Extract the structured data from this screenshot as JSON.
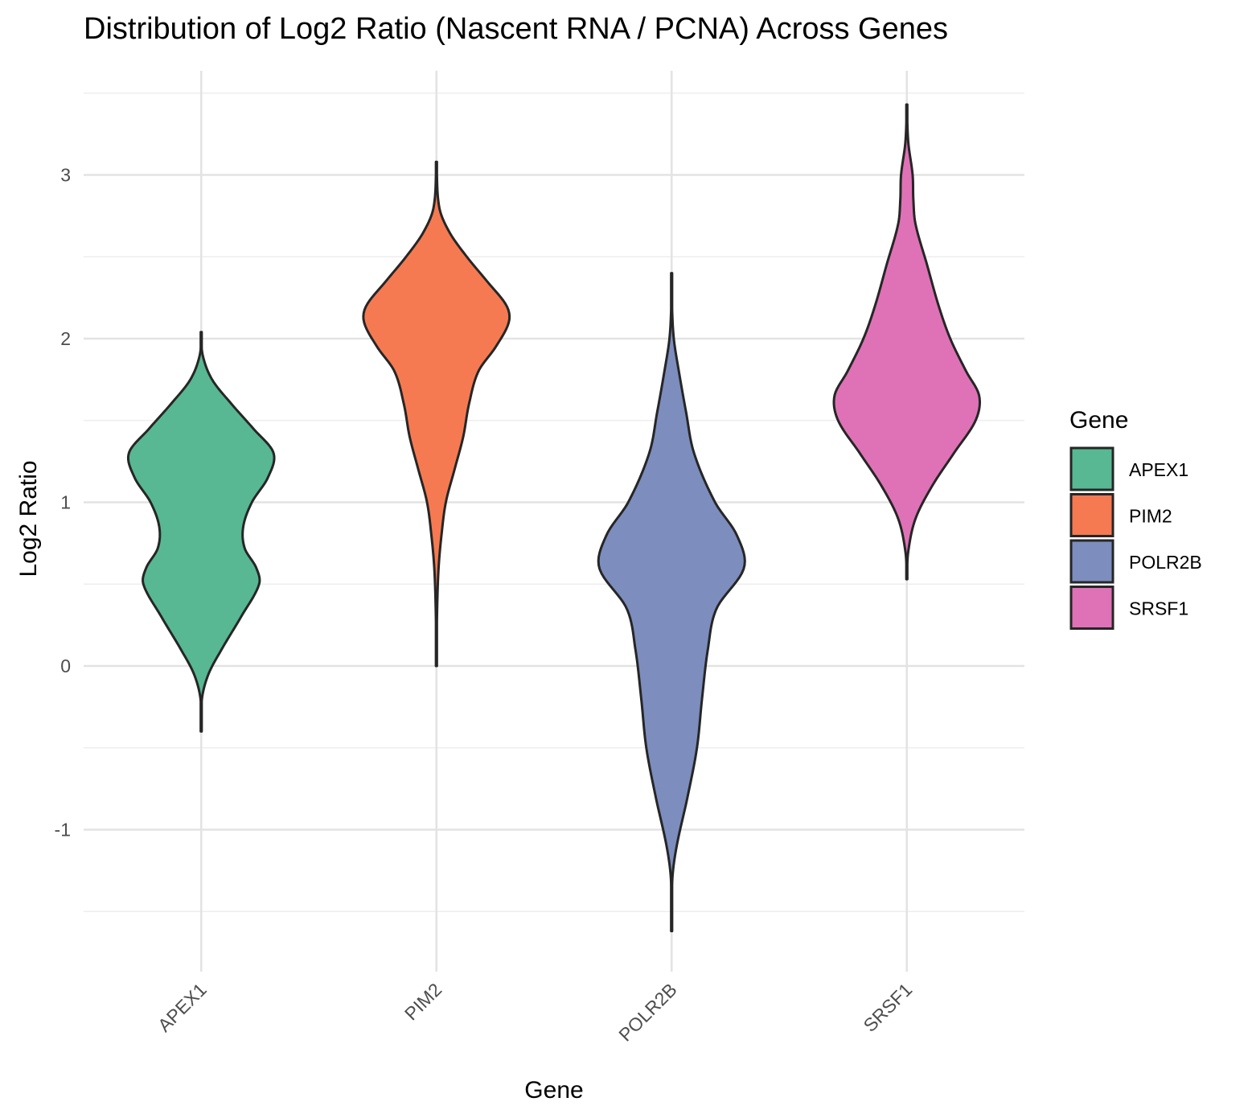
{
  "chart_data": {
    "type": "violin",
    "title": "Distribution of Log2 Ratio (Nascent RNA / PCNA) Across Genes",
    "xlabel": "Gene",
    "ylabel": "Log2 Ratio",
    "categories": [
      "APEX1",
      "PIM2",
      "POLR2B",
      "SRSF1"
    ],
    "ylim": [
      -1.85,
      3.55
    ],
    "y_ticks": [
      -1,
      0,
      1,
      2,
      3
    ],
    "y_tick_labels": [
      "-1",
      "0",
      "1",
      "2",
      "3"
    ],
    "grid": true,
    "legend": {
      "title": "Gene",
      "position": "right",
      "entries": [
        "APEX1",
        "PIM2",
        "POLR2B",
        "SRSF1"
      ]
    },
    "colors": {
      "APEX1": "#57B893",
      "PIM2": "#F67A51",
      "POLR2B": "#7C8DBE",
      "SRSF1": "#DF72B6"
    },
    "series": [
      {
        "name": "APEX1",
        "min": -0.4,
        "max": 2.04,
        "density_profile": [
          [
            -0.4,
            0.0
          ],
          [
            -0.2,
            0.01
          ],
          [
            -0.05,
            0.1
          ],
          [
            0.1,
            0.28
          ],
          [
            0.3,
            0.55
          ],
          [
            0.5,
            0.8
          ],
          [
            0.6,
            0.76
          ],
          [
            0.72,
            0.6
          ],
          [
            0.85,
            0.58
          ],
          [
            1.0,
            0.7
          ],
          [
            1.15,
            0.92
          ],
          [
            1.3,
            1.0
          ],
          [
            1.45,
            0.72
          ],
          [
            1.6,
            0.42
          ],
          [
            1.75,
            0.15
          ],
          [
            1.9,
            0.02
          ],
          [
            2.04,
            0.0
          ]
        ]
      },
      {
        "name": "PIM2",
        "min": 0.0,
        "max": 3.08,
        "density_profile": [
          [
            0.0,
            0.0
          ],
          [
            0.35,
            0.01
          ],
          [
            0.6,
            0.03
          ],
          [
            0.8,
            0.07
          ],
          [
            1.0,
            0.13
          ],
          [
            1.2,
            0.25
          ],
          [
            1.4,
            0.37
          ],
          [
            1.6,
            0.45
          ],
          [
            1.8,
            0.58
          ],
          [
            1.95,
            0.82
          ],
          [
            2.1,
            1.0
          ],
          [
            2.2,
            0.97
          ],
          [
            2.35,
            0.7
          ],
          [
            2.5,
            0.42
          ],
          [
            2.65,
            0.18
          ],
          [
            2.8,
            0.04
          ],
          [
            3.08,
            0.0
          ]
        ]
      },
      {
        "name": "POLR2B",
        "min": -1.62,
        "max": 2.4,
        "density_profile": [
          [
            -1.62,
            0.0
          ],
          [
            -1.3,
            0.01
          ],
          [
            -1.1,
            0.07
          ],
          [
            -0.8,
            0.22
          ],
          [
            -0.5,
            0.35
          ],
          [
            -0.2,
            0.42
          ],
          [
            0.1,
            0.5
          ],
          [
            0.35,
            0.62
          ],
          [
            0.6,
            1.0
          ],
          [
            0.8,
            0.9
          ],
          [
            1.0,
            0.6
          ],
          [
            1.3,
            0.31
          ],
          [
            1.55,
            0.2
          ],
          [
            1.8,
            0.1
          ],
          [
            2.0,
            0.03
          ],
          [
            2.2,
            0.005
          ],
          [
            2.4,
            0.0
          ]
        ]
      },
      {
        "name": "SRSF1",
        "min": 0.53,
        "max": 3.43,
        "density_profile": [
          [
            0.53,
            0.0
          ],
          [
            0.7,
            0.02
          ],
          [
            0.9,
            0.12
          ],
          [
            1.1,
            0.35
          ],
          [
            1.3,
            0.65
          ],
          [
            1.5,
            0.95
          ],
          [
            1.65,
            1.0
          ],
          [
            1.8,
            0.82
          ],
          [
            2.0,
            0.6
          ],
          [
            2.2,
            0.44
          ],
          [
            2.45,
            0.28
          ],
          [
            2.7,
            0.12
          ],
          [
            2.85,
            0.09
          ],
          [
            3.0,
            0.08
          ],
          [
            3.2,
            0.02
          ],
          [
            3.43,
            0.0
          ]
        ]
      }
    ]
  }
}
